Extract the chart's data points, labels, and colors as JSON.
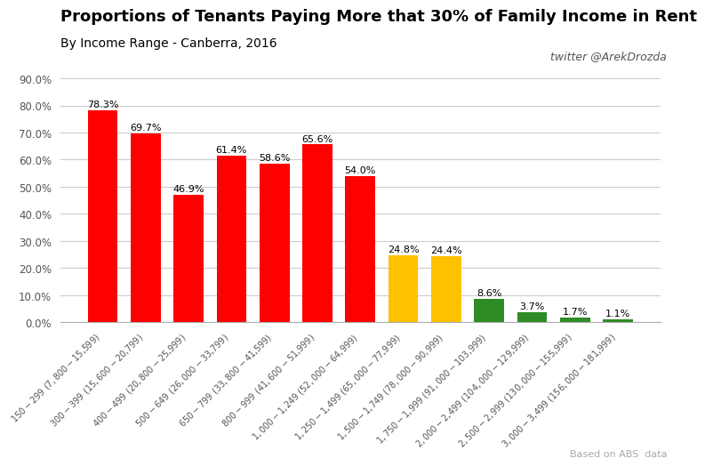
{
  "title": "Proportions of Tenants Paying More that 30% of Family Income in Rent",
  "subtitle": "By Income Range - Canberra, 2016",
  "twitter": "twitter @ArekDrozda",
  "source": "Based on ABS  data",
  "categories": [
    "$150-$299 ($7,800-$15,599)",
    "$300-$399 ($15,600-$20,799)",
    "$400-$499 ($20,800-$25,999)",
    "$500-$649 ($26,000-$33,799)",
    "$650-$799 ($33,800-$41,599)",
    "$800-$999 ($41,600-$51,999)",
    "$1,000-$1,249 ($52,000-$64,999)",
    "$1,250-$1,499 ($65,000-$77,999)",
    "$1,500-$1,749 ($78,000-$90,999)",
    "$1,750-$1,999 ($91,000-$103,999)",
    "$2,000-$2,499 ($104,000-$129,999)",
    "$2,500-$2,999 ($130,000-$155,999)",
    "$3,000-$3,499 ($156,000-$181,999)"
  ],
  "values": [
    78.3,
    69.7,
    46.9,
    61.4,
    58.6,
    65.6,
    54.0,
    24.8,
    24.4,
    8.6,
    3.7,
    1.7,
    1.1
  ],
  "bar_colors": [
    "#ff0000",
    "#ff0000",
    "#ff0000",
    "#ff0000",
    "#ff0000",
    "#ff0000",
    "#ff0000",
    "#ffc000",
    "#ffc000",
    "#2e8b25",
    "#2e8b25",
    "#2e8b25",
    "#2e8b25"
  ],
  "ylim": [
    0,
    90
  ],
  "yticks": [
    0,
    10,
    20,
    30,
    40,
    50,
    60,
    70,
    80,
    90
  ],
  "background_color": "#ffffff",
  "title_fontsize": 13,
  "subtitle_fontsize": 10,
  "annotation_fontsize": 8,
  "xtick_fontsize": 7,
  "ytick_fontsize": 8.5,
  "twitter_fontsize": 9,
  "source_fontsize": 8
}
